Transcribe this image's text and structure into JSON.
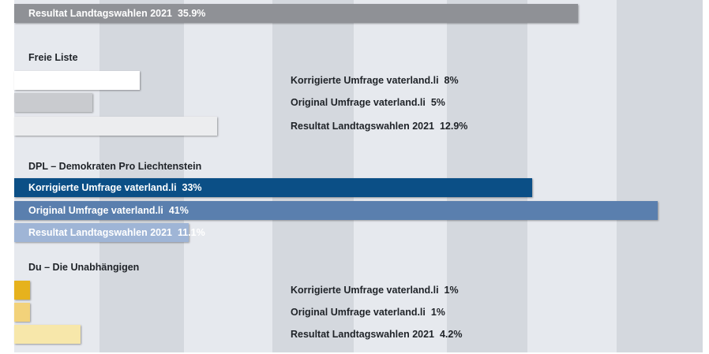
{
  "chart_data": {
    "type": "bar",
    "orientation": "horizontal",
    "grid": "alternating vertical bands",
    "groups": [
      {
        "title": "",
        "bars": [
          {
            "label": "Resultat Landtagswahlen 2021",
            "value_text": "35.9%",
            "value": 35.9,
            "color": "#8f9196",
            "label_position": "inside",
            "text_color": "#ffffff"
          }
        ]
      },
      {
        "title": "Freie Liste",
        "bars": [
          {
            "label": "Korrigierte Umfrage vaterland.li",
            "value_text": "8%",
            "value": 8,
            "color": "#ffffff",
            "label_position": "outside",
            "text_color": "#1f2328"
          },
          {
            "label": "Original Umfrage vaterland.li",
            "value_text": "5%",
            "value": 5,
            "color": "#c9cbcf",
            "label_position": "outside",
            "text_color": "#1f2328"
          },
          {
            "label": "Resultat Landtagswahlen 2021",
            "value_text": "12.9%",
            "value": 12.9,
            "color": "#ecedef",
            "label_position": "outside",
            "text_color": "#1f2328"
          }
        ]
      },
      {
        "title": "DPL – Demokraten Pro Liechtenstein",
        "bars": [
          {
            "label": "Korrigierte Umfrage vaterland.li",
            "value_text": "33%",
            "value": 33,
            "color": "#0b4f86",
            "label_position": "inside",
            "text_color": "#ffffff"
          },
          {
            "label": "Original Umfrage vaterland.li",
            "value_text": "41%",
            "value": 41,
            "color": "#5a7fae",
            "label_position": "inside",
            "text_color": "#ffffff"
          },
          {
            "label": "Resultat Landtagswahlen 2021",
            "value_text": "11.1%",
            "value": 11.1,
            "color": "#9fb5d6",
            "label_position": "inside",
            "text_color": "#ffffff"
          }
        ]
      },
      {
        "title": "Du – Die Unabhängigen",
        "bars": [
          {
            "label": "Korrigierte Umfrage vaterland.li",
            "value_text": "1%",
            "value": 1,
            "color": "#e6b21d",
            "label_position": "outside",
            "text_color": "#1f2328"
          },
          {
            "label": "Original Umfrage vaterland.li",
            "value_text": "1%",
            "value": 1,
            "color": "#f2d27a",
            "label_position": "outside",
            "text_color": "#1f2328"
          },
          {
            "label": "Resultat Landtagswahlen 2021",
            "value_text": "4.2%",
            "value": 4.2,
            "color": "#f7e7aa",
            "label_position": "outside",
            "text_color": "#1f2328"
          }
        ]
      }
    ]
  }
}
